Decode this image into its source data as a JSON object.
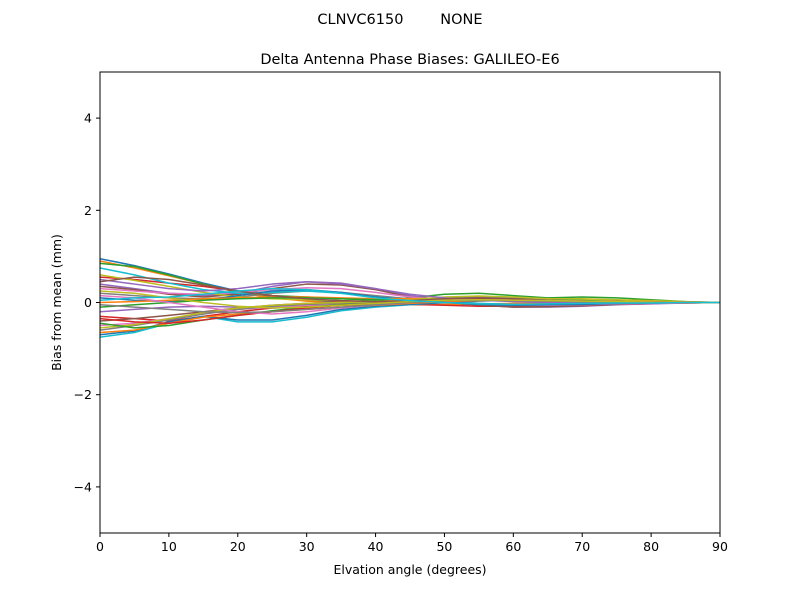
{
  "figure": {
    "suptitle": "CLNVC6150        NONE"
  },
  "chart_data": {
    "type": "line",
    "title": "Delta Antenna Phase Biases: GALILEO-E6",
    "xlabel": "Elvation angle (degrees)",
    "ylabel": "Bias from mean (mm)",
    "xlim": [
      0,
      90
    ],
    "ylim": [
      -5,
      5
    ],
    "xticks": [
      0,
      10,
      20,
      30,
      40,
      50,
      60,
      70,
      80,
      90
    ],
    "yticks": [
      -4,
      -2,
      0,
      2,
      4
    ],
    "ytick_labels": [
      "−4",
      "−2",
      "0",
      "2",
      "4"
    ],
    "grid": false,
    "legend": "none",
    "x": [
      0,
      5,
      10,
      15,
      20,
      25,
      30,
      35,
      40,
      45,
      50,
      55,
      60,
      65,
      70,
      75,
      80,
      85,
      90
    ],
    "series": [
      {
        "color": "#1f77b4",
        "values": [
          0.95,
          0.8,
          0.62,
          0.42,
          0.25,
          0.12,
          0.05,
          0.0,
          -0.03,
          -0.05,
          -0.05,
          -0.04,
          -0.03,
          -0.02,
          -0.02,
          -0.01,
          -0.01,
          0.0,
          0.0
        ]
      },
      {
        "color": "#ff7f0e",
        "values": [
          0.9,
          0.75,
          0.58,
          0.4,
          0.22,
          0.1,
          0.03,
          -0.02,
          -0.04,
          -0.05,
          -0.04,
          -0.03,
          -0.02,
          -0.02,
          -0.01,
          -0.01,
          0.0,
          0.0,
          0.0
        ]
      },
      {
        "color": "#2ca02c",
        "values": [
          0.85,
          0.78,
          0.6,
          0.4,
          0.22,
          0.15,
          0.12,
          0.08,
          0.05,
          0.1,
          0.18,
          0.2,
          0.15,
          0.1,
          0.12,
          0.1,
          0.06,
          0.02,
          0.0
        ]
      },
      {
        "color": "#d62728",
        "values": [
          0.55,
          0.5,
          0.42,
          0.35,
          0.25,
          0.15,
          0.08,
          0.02,
          -0.02,
          -0.04,
          -0.06,
          -0.08,
          -0.08,
          -0.06,
          -0.05,
          -0.03,
          -0.02,
          -0.01,
          0.0
        ]
      },
      {
        "color": "#9467bd",
        "values": [
          0.4,
          0.3,
          0.2,
          0.15,
          0.2,
          0.35,
          0.45,
          0.42,
          0.3,
          0.15,
          0.05,
          -0.05,
          -0.1,
          -0.1,
          -0.08,
          -0.05,
          -0.03,
          -0.01,
          0.0
        ]
      },
      {
        "color": "#8c564b",
        "values": [
          0.35,
          0.28,
          0.18,
          0.12,
          0.18,
          0.3,
          0.4,
          0.38,
          0.28,
          0.12,
          0.02,
          -0.06,
          -0.1,
          -0.09,
          -0.07,
          -0.04,
          -0.02,
          -0.01,
          0.0
        ]
      },
      {
        "color": "#e377c2",
        "values": [
          0.3,
          0.25,
          0.2,
          0.18,
          0.22,
          0.28,
          0.32,
          0.3,
          0.22,
          0.12,
          0.05,
          -0.02,
          -0.06,
          -0.06,
          -0.05,
          -0.03,
          -0.02,
          -0.01,
          0.0
        ]
      },
      {
        "color": "#7f7f7f",
        "values": [
          0.2,
          0.15,
          0.1,
          0.08,
          0.12,
          0.2,
          0.25,
          0.22,
          0.15,
          0.08,
          0.02,
          -0.03,
          -0.06,
          -0.05,
          -0.04,
          -0.02,
          -0.01,
          0.0,
          0.0
        ]
      },
      {
        "color": "#bcbd22",
        "values": [
          0.6,
          0.48,
          0.35,
          0.22,
          0.12,
          0.08,
          0.06,
          0.04,
          0.02,
          0.05,
          0.1,
          0.12,
          0.1,
          0.08,
          0.08,
          0.06,
          0.04,
          0.02,
          0.0
        ]
      },
      {
        "color": "#17becf",
        "values": [
          0.75,
          0.6,
          0.42,
          0.28,
          0.2,
          0.22,
          0.25,
          0.2,
          0.12,
          0.06,
          0.02,
          -0.02,
          -0.04,
          -0.04,
          -0.03,
          -0.02,
          -0.01,
          0.0,
          0.0
        ]
      },
      {
        "color": "#1f77b4",
        "values": [
          0.1,
          0.05,
          0.02,
          0.05,
          0.15,
          0.25,
          0.28,
          0.22,
          0.12,
          0.05,
          0.0,
          -0.04,
          -0.06,
          -0.05,
          -0.04,
          -0.02,
          -0.01,
          0.0,
          0.0
        ]
      },
      {
        "color": "#ff7f0e",
        "values": [
          0.0,
          0.02,
          0.05,
          0.08,
          0.1,
          0.12,
          0.12,
          0.1,
          0.08,
          0.08,
          0.1,
          0.1,
          0.08,
          0.06,
          0.05,
          0.03,
          0.02,
          0.01,
          0.0
        ]
      },
      {
        "color": "#2ca02c",
        "values": [
          -0.1,
          -0.05,
          0.0,
          0.05,
          0.08,
          0.1,
          0.1,
          0.08,
          0.06,
          0.05,
          0.06,
          0.06,
          0.05,
          0.04,
          0.03,
          0.02,
          0.01,
          0.0,
          0.0
        ]
      },
      {
        "color": "#d62728",
        "values": [
          -0.3,
          -0.35,
          -0.4,
          -0.3,
          -0.2,
          -0.12,
          -0.08,
          -0.06,
          -0.05,
          0.0,
          0.08,
          0.12,
          0.1,
          0.06,
          0.04,
          0.02,
          0.01,
          0.0,
          0.0
        ]
      },
      {
        "color": "#9467bd",
        "values": [
          -0.2,
          -0.15,
          -0.1,
          -0.08,
          -0.1,
          -0.12,
          -0.1,
          -0.06,
          -0.02,
          0.02,
          0.05,
          0.05,
          0.04,
          0.03,
          0.02,
          0.01,
          0.01,
          0.0,
          0.0
        ]
      },
      {
        "color": "#8c564b",
        "values": [
          -0.4,
          -0.35,
          -0.28,
          -0.2,
          -0.12,
          -0.06,
          -0.02,
          0.0,
          0.0,
          0.02,
          0.05,
          0.06,
          0.05,
          0.04,
          0.03,
          0.02,
          0.01,
          0.0,
          0.0
        ]
      },
      {
        "color": "#e377c2",
        "values": [
          -0.5,
          -0.45,
          -0.35,
          -0.25,
          -0.15,
          -0.1,
          -0.06,
          -0.04,
          -0.02,
          0.02,
          0.08,
          0.1,
          0.08,
          0.05,
          0.03,
          0.02,
          0.01,
          0.0,
          0.0
        ]
      },
      {
        "color": "#7f7f7f",
        "values": [
          -0.6,
          -0.5,
          -0.38,
          -0.25,
          -0.15,
          -0.08,
          -0.04,
          -0.02,
          0.0,
          0.04,
          0.1,
          0.12,
          0.1,
          0.06,
          0.04,
          0.02,
          0.01,
          0.0,
          0.0
        ]
      },
      {
        "color": "#bcbd22",
        "values": [
          -0.55,
          -0.48,
          -0.35,
          -0.22,
          -0.12,
          -0.06,
          -0.02,
          0.0,
          0.02,
          0.06,
          0.12,
          0.14,
          0.12,
          0.08,
          0.05,
          0.03,
          0.02,
          0.01,
          0.0
        ]
      },
      {
        "color": "#17becf",
        "values": [
          -0.75,
          -0.65,
          -0.45,
          -0.3,
          -0.42,
          -0.42,
          -0.32,
          -0.18,
          -0.1,
          -0.05,
          0.0,
          0.04,
          0.06,
          0.05,
          0.04,
          0.02,
          0.01,
          0.0,
          0.0
        ]
      },
      {
        "color": "#1f77b4",
        "values": [
          -0.7,
          -0.62,
          -0.42,
          -0.3,
          -0.38,
          -0.38,
          -0.28,
          -0.15,
          -0.08,
          -0.04,
          0.0,
          0.03,
          0.05,
          0.04,
          0.03,
          0.02,
          0.01,
          0.0,
          0.0
        ]
      },
      {
        "color": "#ff7f0e",
        "values": [
          -0.65,
          -0.6,
          -0.45,
          -0.32,
          -0.25,
          -0.2,
          -0.15,
          -0.1,
          -0.06,
          -0.02,
          0.02,
          0.04,
          0.04,
          0.03,
          0.02,
          0.01,
          0.01,
          0.0,
          0.0
        ]
      },
      {
        "color": "#2ca02c",
        "values": [
          -0.45,
          -0.55,
          -0.5,
          -0.38,
          -0.28,
          -0.18,
          -0.1,
          -0.05,
          -0.02,
          0.02,
          0.06,
          0.08,
          0.07,
          0.05,
          0.04,
          0.02,
          0.01,
          0.0,
          0.0
        ]
      },
      {
        "color": "#d62728",
        "values": [
          -0.35,
          -0.42,
          -0.45,
          -0.38,
          -0.28,
          -0.2,
          -0.12,
          -0.06,
          -0.02,
          0.02,
          0.06,
          0.07,
          0.06,
          0.04,
          0.03,
          0.02,
          0.01,
          0.0,
          0.0
        ]
      },
      {
        "color": "#9467bd",
        "values": [
          0.5,
          0.4,
          0.3,
          0.25,
          0.3,
          0.4,
          0.45,
          0.4,
          0.3,
          0.18,
          0.1,
          0.05,
          0.02,
          0.0,
          -0.01,
          -0.01,
          -0.01,
          0.0,
          0.0
        ]
      },
      {
        "color": "#8c564b",
        "values": [
          0.45,
          0.55,
          0.5,
          0.38,
          0.25,
          0.15,
          0.08,
          0.04,
          0.02,
          0.04,
          0.08,
          0.1,
          0.08,
          0.05,
          0.03,
          0.02,
          0.01,
          0.0,
          0.0
        ]
      },
      {
        "color": "#e377c2",
        "values": [
          0.15,
          0.1,
          0.0,
          -0.1,
          -0.2,
          -0.25,
          -0.2,
          -0.12,
          -0.05,
          0.0,
          0.05,
          0.06,
          0.05,
          0.04,
          0.03,
          0.02,
          0.01,
          0.0,
          0.0
        ]
      },
      {
        "color": "#7f7f7f",
        "values": [
          -0.05,
          -0.1,
          -0.15,
          -0.2,
          -0.22,
          -0.2,
          -0.15,
          -0.1,
          -0.05,
          0.0,
          0.04,
          0.05,
          0.04,
          0.03,
          0.02,
          0.01,
          0.0,
          0.0,
          0.0
        ]
      },
      {
        "color": "#bcbd22",
        "values": [
          0.25,
          0.2,
          0.1,
          0.0,
          -0.08,
          -0.12,
          -0.1,
          -0.06,
          -0.02,
          0.02,
          0.05,
          0.06,
          0.05,
          0.04,
          0.03,
          0.02,
          0.01,
          0.0,
          0.0
        ]
      },
      {
        "color": "#17becf",
        "values": [
          0.05,
          0.1,
          0.12,
          0.18,
          0.25,
          0.3,
          0.28,
          0.2,
          0.1,
          0.04,
          0.0,
          -0.03,
          -0.04,
          -0.03,
          -0.02,
          -0.01,
          -0.01,
          0.0,
          0.0
        ]
      }
    ]
  }
}
